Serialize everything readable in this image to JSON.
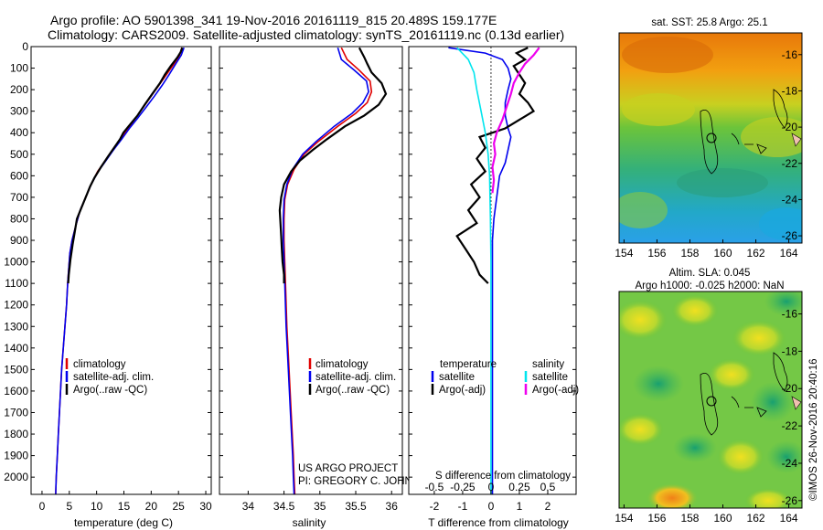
{
  "header": {
    "line1": "Argo profile: AO 5901398_341 19-Nov-2016 20161119_815 20.489S 159.177E",
    "line2": "Climatology: CARS2009. Satellite-adjusted climatology: synTS_20161119.nc (0.13d earlier)"
  },
  "credits": {
    "project": "US ARGO PROJECT",
    "pi": "PI: GREGORY C. JOHNSON",
    "imos": "©IMOS 26-Nov-2016 20:40:16"
  },
  "colors": {
    "climatology": "#e00000",
    "satellite": "#0000ee",
    "argo": "#000000",
    "salinity_satellite": "#00e5ee",
    "salinity_argo": "#ee00ee",
    "zero_line": "#000000"
  },
  "legend_profiles": {
    "climatology": "climatology",
    "satellite": "satellite-adj. clim.",
    "argo": "Argo(..raw -QC)"
  },
  "legend_diff": {
    "temperature_title": "temperature",
    "salinity_title": "salinity",
    "satellite": "satellite",
    "argo": "Argo(-adj)"
  },
  "maps": {
    "sst_title": "sat. SST: 25.8  Argo: 25.1",
    "sla_title_1": "Altim. SLA: 0.045",
    "sla_title_2": "Argo h1000: -0.025 h2000: NaN",
    "x_ticks": [
      "154",
      "156",
      "158",
      "160",
      "162",
      "164"
    ],
    "y_ticks": [
      "-16",
      "-18",
      "-20",
      "-22",
      "-24",
      "-26"
    ],
    "x_range": [
      153.7,
      164.8
    ],
    "y_range": [
      -26.4,
      -14.8
    ],
    "float_position": {
      "lon": 159.177,
      "lat": -20.489
    }
  },
  "chart_data": [
    {
      "type": "line",
      "id": "temperature",
      "xlabel": "temperature (deg C)",
      "ylabel": "",
      "xlim": [
        -2,
        31
      ],
      "ylim": [
        2080,
        0
      ],
      "x_ticks": [
        0,
        5,
        10,
        15,
        20,
        25,
        30
      ],
      "y_ticks": [
        0,
        100,
        200,
        300,
        400,
        500,
        600,
        700,
        800,
        900,
        1000,
        1100,
        1200,
        1300,
        1400,
        1500,
        1600,
        1700,
        1800,
        1900,
        2000
      ],
      "series": [
        {
          "name": "climatology",
          "color": "#e00000",
          "points": [
            [
              25.6,
              5
            ],
            [
              25.2,
              40
            ],
            [
              24.2,
              80
            ],
            [
              22.8,
              130
            ],
            [
              21.4,
              180
            ],
            [
              20.0,
              230
            ],
            [
              18.6,
              280
            ],
            [
              17.2,
              330
            ],
            [
              15.8,
              380
            ],
            [
              14.4,
              430
            ],
            [
              13.0,
              480
            ],
            [
              11.6,
              530
            ],
            [
              10.2,
              580
            ],
            [
              9.0,
              640
            ],
            [
              8.0,
              700
            ],
            [
              7.0,
              760
            ],
            [
              6.2,
              830
            ],
            [
              5.5,
              900
            ],
            [
              5.1,
              960
            ],
            [
              4.9,
              1030
            ],
            [
              4.7,
              1100
            ],
            [
              4.5,
              1200
            ],
            [
              4.2,
              1300
            ],
            [
              3.9,
              1400
            ],
            [
              3.6,
              1500
            ],
            [
              3.4,
              1600
            ],
            [
              3.2,
              1700
            ],
            [
              3.0,
              1800
            ],
            [
              2.8,
              1900
            ],
            [
              2.6,
              2000
            ],
            [
              2.5,
              2080
            ]
          ]
        },
        {
          "name": "satellite-adj. clim.",
          "color": "#0000ee",
          "points": [
            [
              26.0,
              5
            ],
            [
              25.5,
              40
            ],
            [
              24.5,
              80
            ],
            [
              23.3,
              130
            ],
            [
              22.0,
              180
            ],
            [
              20.6,
              230
            ],
            [
              19.1,
              280
            ],
            [
              17.6,
              330
            ],
            [
              16.0,
              380
            ],
            [
              14.6,
              430
            ],
            [
              13.1,
              480
            ],
            [
              11.7,
              530
            ],
            [
              10.3,
              580
            ],
            [
              9.0,
              640
            ],
            [
              8.0,
              700
            ],
            [
              7.0,
              760
            ],
            [
              6.2,
              830
            ],
            [
              5.5,
              900
            ],
            [
              5.1,
              960
            ],
            [
              4.9,
              1030
            ],
            [
              4.7,
              1100
            ],
            [
              4.5,
              1200
            ],
            [
              4.2,
              1300
            ],
            [
              3.9,
              1400
            ],
            [
              3.6,
              1500
            ],
            [
              3.4,
              1600
            ],
            [
              3.2,
              1700
            ],
            [
              3.0,
              1800
            ],
            [
              2.8,
              1900
            ],
            [
              2.6,
              2000
            ],
            [
              2.5,
              2080
            ]
          ]
        },
        {
          "name": "Argo(..raw -QC)",
          "color": "#000000",
          "points": [
            [
              25.7,
              5
            ],
            [
              25.4,
              25
            ],
            [
              24.8,
              50
            ],
            [
              23.6,
              90
            ],
            [
              22.5,
              130
            ],
            [
              21.6,
              170
            ],
            [
              20.2,
              220
            ],
            [
              18.8,
              270
            ],
            [
              17.5,
              320
            ],
            [
              16.2,
              360
            ],
            [
              14.9,
              400
            ],
            [
              14.3,
              430
            ],
            [
              13.2,
              470
            ],
            [
              12.1,
              510
            ],
            [
              10.8,
              560
            ],
            [
              9.6,
              610
            ],
            [
              8.8,
              650
            ],
            [
              8.0,
              700
            ],
            [
              7.2,
              750
            ],
            [
              6.4,
              800
            ],
            [
              6.0,
              860
            ],
            [
              5.6,
              920
            ],
            [
              5.2,
              990
            ],
            [
              4.9,
              1060
            ],
            [
              4.8,
              1100
            ]
          ]
        }
      ]
    },
    {
      "type": "line",
      "id": "salinity",
      "xlabel": "salinity",
      "ylabel": "",
      "xlim": [
        33.6,
        36.15
      ],
      "ylim": [
        2080,
        0
      ],
      "x_ticks": [
        34,
        34.5,
        35,
        35.5,
        36
      ],
      "series": [
        {
          "name": "climatology",
          "color": "#e00000",
          "points": [
            [
              35.3,
              5
            ],
            [
              35.38,
              60
            ],
            [
              35.55,
              110
            ],
            [
              35.7,
              160
            ],
            [
              35.72,
              210
            ],
            [
              35.66,
              260
            ],
            [
              35.5,
              310
            ],
            [
              35.25,
              370
            ],
            [
              34.98,
              440
            ],
            [
              34.78,
              500
            ],
            [
              34.64,
              570
            ],
            [
              34.55,
              640
            ],
            [
              34.51,
              710
            ],
            [
              34.5,
              800
            ],
            [
              34.5,
              900
            ],
            [
              34.51,
              1000
            ],
            [
              34.52,
              1100
            ],
            [
              34.54,
              1300
            ],
            [
              34.57,
              1500
            ],
            [
              34.6,
              1700
            ],
            [
              34.63,
              1900
            ],
            [
              34.64,
              2000
            ],
            [
              34.65,
              2080
            ]
          ]
        },
        {
          "name": "satellite-adj. clim.",
          "color": "#0000ee",
          "points": [
            [
              35.25,
              5
            ],
            [
              35.3,
              60
            ],
            [
              35.48,
              110
            ],
            [
              35.65,
              160
            ],
            [
              35.68,
              210
            ],
            [
              35.6,
              260
            ],
            [
              35.45,
              310
            ],
            [
              35.2,
              370
            ],
            [
              34.95,
              440
            ],
            [
              34.76,
              500
            ],
            [
              34.62,
              570
            ],
            [
              34.54,
              640
            ],
            [
              34.5,
              710
            ],
            [
              34.49,
              800
            ],
            [
              34.49,
              900
            ],
            [
              34.5,
              1000
            ],
            [
              34.51,
              1100
            ],
            [
              34.53,
              1300
            ],
            [
              34.56,
              1500
            ],
            [
              34.59,
              1700
            ],
            [
              34.62,
              1900
            ],
            [
              34.63,
              2000
            ],
            [
              34.64,
              2080
            ]
          ]
        },
        {
          "name": "Argo(..raw -QC)",
          "color": "#000000",
          "points": [
            [
              35.55,
              5
            ],
            [
              35.62,
              50
            ],
            [
              35.66,
              80
            ],
            [
              35.72,
              120
            ],
            [
              35.86,
              170
            ],
            [
              35.92,
              220
            ],
            [
              35.82,
              270
            ],
            [
              35.62,
              320
            ],
            [
              35.35,
              370
            ],
            [
              35.1,
              430
            ],
            [
              34.9,
              480
            ],
            [
              34.72,
              530
            ],
            [
              34.6,
              580
            ],
            [
              34.5,
              640
            ],
            [
              34.46,
              700
            ],
            [
              34.44,
              760
            ],
            [
              34.45,
              820
            ],
            [
              34.46,
              880
            ],
            [
              34.47,
              940
            ],
            [
              34.48,
              1000
            ],
            [
              34.5,
              1060
            ],
            [
              34.5,
              1100
            ]
          ]
        }
      ]
    },
    {
      "type": "line",
      "id": "difference",
      "xlabel": "T difference from climatology",
      "x2label": "S difference from climatology",
      "ylabel": "",
      "xlim": [
        -2.9,
        3.0
      ],
      "ylim": [
        2080,
        0
      ],
      "x_ticks": [
        -2,
        -1,
        0,
        1,
        2
      ],
      "x2_ticks": [
        "-0.5",
        "-0.25",
        "0",
        "0.25",
        "0.5"
      ],
      "x2_positions": [
        -2,
        -1,
        0,
        1,
        2
      ],
      "series": [
        {
          "name": "temperature satellite",
          "color": "#0000ee",
          "points": [
            [
              -1.5,
              5
            ],
            [
              -0.2,
              30
            ],
            [
              0.4,
              60
            ],
            [
              0.6,
              100
            ],
            [
              0.7,
              150
            ],
            [
              0.6,
              200
            ],
            [
              0.5,
              260
            ],
            [
              0.5,
              320
            ],
            [
              0.6,
              380
            ],
            [
              0.7,
              420
            ],
            [
              0.6,
              480
            ],
            [
              0.5,
              540
            ],
            [
              0.3,
              600
            ],
            [
              0.2,
              700
            ],
            [
              0.1,
              800
            ],
            [
              0.05,
              900
            ],
            [
              0.05,
              1000
            ],
            [
              0.05,
              1200
            ],
            [
              0.05,
              1500
            ],
            [
              0.05,
              1800
            ],
            [
              0.05,
              2080
            ]
          ]
        },
        {
          "name": "temperature Argo(-adj)",
          "color": "#000000",
          "points": [
            [
              1.3,
              5
            ],
            [
              0.9,
              30
            ],
            [
              1.2,
              60
            ],
            [
              0.8,
              90
            ],
            [
              1.0,
              130
            ],
            [
              1.2,
              170
            ],
            [
              1.0,
              220
            ],
            [
              1.3,
              260
            ],
            [
              1.5,
              300
            ],
            [
              1.0,
              340
            ],
            [
              0.5,
              380
            ],
            [
              -0.4,
              420
            ],
            [
              -0.2,
              470
            ],
            [
              -0.5,
              520
            ],
            [
              -0.2,
              580
            ],
            [
              -0.7,
              640
            ],
            [
              -0.4,
              700
            ],
            [
              -0.8,
              760
            ],
            [
              -0.5,
              820
            ],
            [
              -1.2,
              880
            ],
            [
              -0.9,
              940
            ],
            [
              -0.6,
              1000
            ],
            [
              -0.4,
              1060
            ],
            [
              -0.1,
              1100
            ]
          ]
        },
        {
          "name": "salinity satellite",
          "color": "#00e5ee",
          "points": [
            [
              -1.2,
              5
            ],
            [
              -0.8,
              60
            ],
            [
              -0.6,
              120
            ],
            [
              -0.5,
              200
            ],
            [
              -0.35,
              300
            ],
            [
              -0.2,
              400
            ],
            [
              -0.1,
              500
            ],
            [
              -0.05,
              600
            ],
            [
              -0.02,
              800
            ],
            [
              0,
              1000
            ],
            [
              0,
              1400
            ],
            [
              0,
              1800
            ],
            [
              0,
              2080
            ]
          ]
        },
        {
          "name": "salinity Argo(-adj)",
          "color": "#ee00ee",
          "points": [
            [
              1.7,
              5
            ],
            [
              1.5,
              40
            ],
            [
              1.2,
              80
            ],
            [
              1.0,
              120
            ],
            [
              0.8,
              170
            ],
            [
              0.7,
              220
            ],
            [
              0.55,
              280
            ],
            [
              0.4,
              340
            ],
            [
              0.2,
              400
            ],
            [
              0.1,
              450
            ],
            [
              0.15,
              500
            ],
            [
              0.05,
              560
            ],
            [
              0.1,
              620
            ],
            [
              0.05,
              680
            ]
          ]
        }
      ]
    }
  ]
}
